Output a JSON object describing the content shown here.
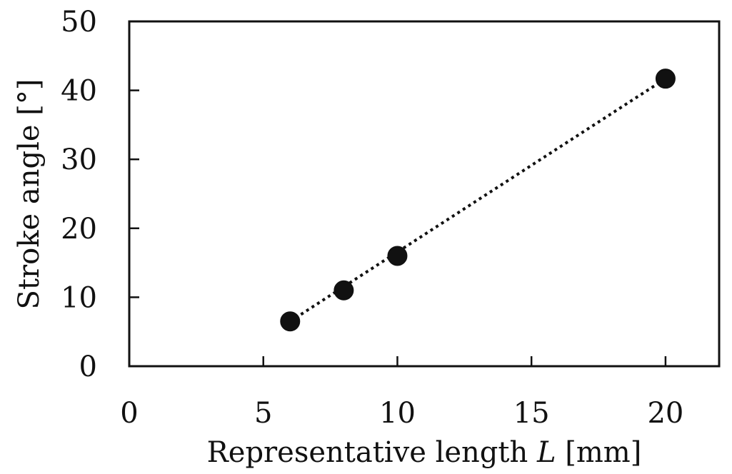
{
  "chart_data": {
    "type": "scatter",
    "xlabel": "Representative length",
    "xlabel_symbol": "L",
    "xlabel_unit": "[mm]",
    "ylabel": "Stroke angle [°]",
    "xlim": [
      0,
      22
    ],
    "ylim": [
      0,
      50
    ],
    "xticks": [
      0,
      5,
      10,
      15,
      20
    ],
    "yticks": [
      0,
      10,
      20,
      30,
      40,
      50
    ],
    "grid": false,
    "series": [
      {
        "x": [
          6,
          8,
          10,
          20
        ],
        "y": [
          6.5,
          11,
          16,
          41.7
        ],
        "marker": "filled-circle",
        "color": "#111111"
      }
    ],
    "trend_line": {
      "style": "dotted",
      "x": [
        6,
        20
      ],
      "y": [
        6.5,
        41.7
      ]
    }
  }
}
